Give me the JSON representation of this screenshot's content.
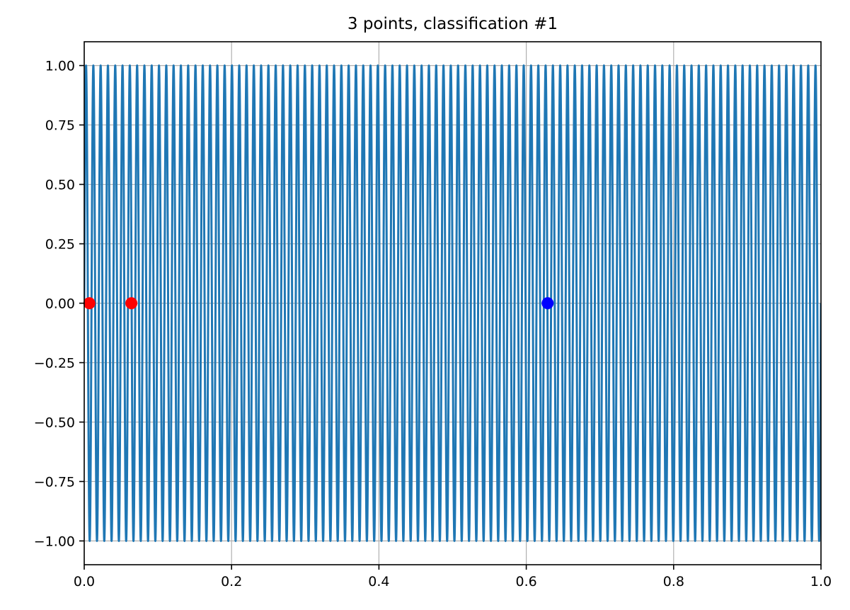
{
  "chart_data": {
    "type": "line",
    "title": "3 points, classification #1",
    "xlabel": "",
    "ylabel": "",
    "xlim": [
      0,
      1
    ],
    "ylim": [
      -1.1,
      1.1
    ],
    "grid": true,
    "x_ticks": [
      0,
      0.2,
      0.4,
      0.6,
      0.8,
      1.0
    ],
    "x_tick_labels": [
      "0.0",
      "0.2",
      "0.4",
      "0.6",
      "0.8",
      "1.0"
    ],
    "y_ticks": [
      1.0,
      0.75,
      0.5,
      0.25,
      0.0,
      -0.25,
      -0.5,
      -0.75,
      -1.0
    ],
    "y_tick_labels": [
      "1.00",
      "0.75",
      "0.50",
      "0.25",
      "0.00",
      "−0.25",
      "−0.50",
      "−0.75",
      "−1.00"
    ],
    "curve": {
      "function": "sin(2*pi*frequency*x)",
      "frequency": 101,
      "x_range": [
        0,
        1
      ],
      "color": "#1f77b4"
    },
    "points": [
      {
        "x": 0.007,
        "y": 0.0,
        "class": "red",
        "color": "#ff0000"
      },
      {
        "x": 0.064,
        "y": 0.0,
        "class": "red",
        "color": "#ff0000"
      },
      {
        "x": 0.629,
        "y": 0.0,
        "class": "blue",
        "color": "#0000ff"
      }
    ],
    "colors": {
      "grid": "#b0b0b0",
      "axes": "#000000",
      "background": "#ffffff"
    }
  }
}
